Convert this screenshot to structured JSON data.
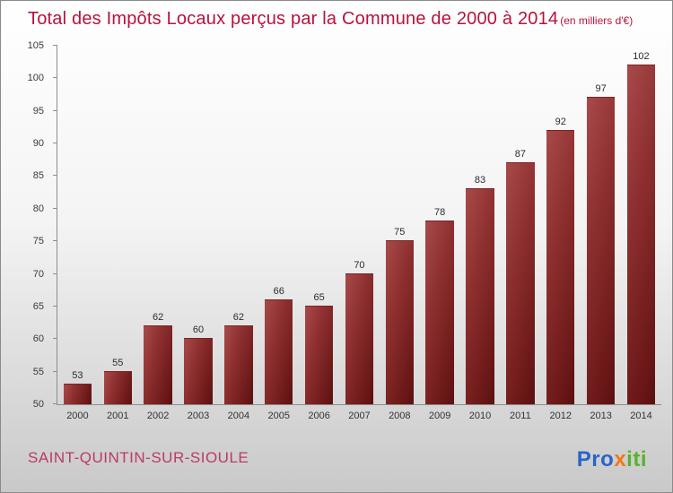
{
  "header": {
    "title": "Total des Impôts Locaux perçus par la Commune de 2000 à 2014",
    "subtitle": "(en milliers d'€)"
  },
  "footer": {
    "commune": "SAINT-QUINTIN-SUR-SIOULE",
    "logo": {
      "segments": [
        {
          "text": "Pro",
          "color": "#2a64c8"
        },
        {
          "text": "x",
          "color": "#f07818"
        },
        {
          "text": "iti",
          "color": "#58b32a"
        }
      ]
    }
  },
  "chart_data": {
    "type": "bar",
    "title": "Total des Impôts Locaux perçus par la Commune de 2000 à 2014",
    "subtitle": "(en milliers d'€)",
    "categories": [
      "2000",
      "2001",
      "2002",
      "2003",
      "2004",
      "2005",
      "2006",
      "2007",
      "2008",
      "2009",
      "2010",
      "2011",
      "2012",
      "2013",
      "2014"
    ],
    "values": [
      53,
      55,
      62,
      60,
      62,
      66,
      65,
      70,
      75,
      78,
      83,
      87,
      92,
      97,
      102
    ],
    "xlabel": "",
    "ylabel": "",
    "ylim": [
      50,
      105
    ],
    "yticks": [
      50,
      55,
      60,
      65,
      70,
      75,
      80,
      85,
      90,
      95,
      100,
      105
    ],
    "grid": false,
    "legend": false,
    "bar_color": "#7a2020"
  }
}
